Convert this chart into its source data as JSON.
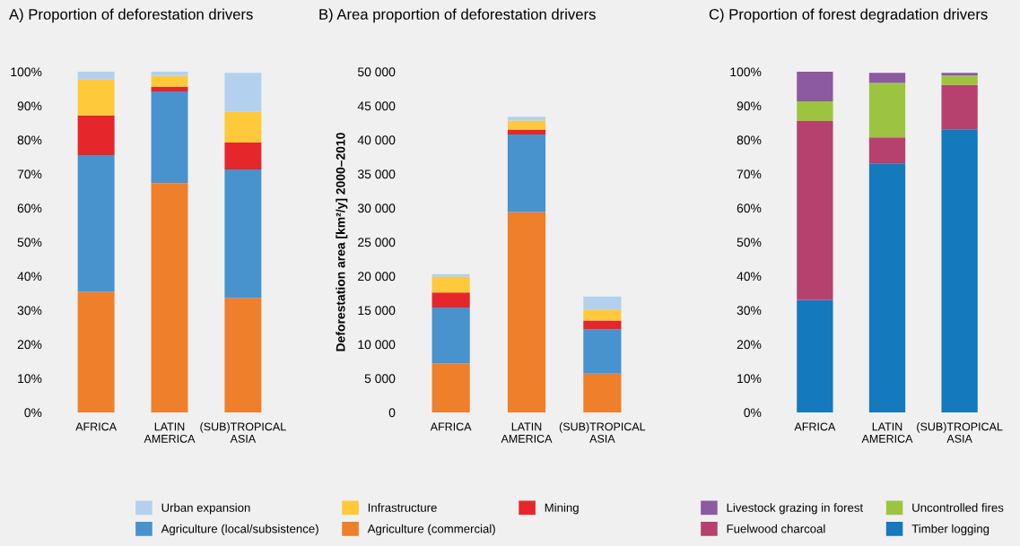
{
  "chart_data": [
    {
      "type": "bar",
      "stacked": true,
      "title": "A) Proportion of deforestation drivers",
      "categories": [
        "AFRICA",
        "LATIN\nAMERICA",
        "(SUB)TROPICAL\nASIA"
      ],
      "ylim": [
        0,
        100
      ],
      "yticks": [
        {
          "value": 0,
          "label": "0%"
        },
        {
          "value": 10,
          "label": "10%"
        },
        {
          "value": 20,
          "label": "20%"
        },
        {
          "value": 30,
          "label": "30%"
        },
        {
          "value": 40,
          "label": "40%"
        },
        {
          "value": 50,
          "label": "50%"
        },
        {
          "value": 60,
          "label": "60%"
        },
        {
          "value": 70,
          "label": "70%"
        },
        {
          "value": 80,
          "label": "80%"
        },
        {
          "value": 90,
          "label": "90%"
        },
        {
          "value": 100,
          "label": "100%"
        }
      ],
      "grid": false,
      "legend": "bottom",
      "series": [
        {
          "name": "Agriculture (commercial)",
          "color": "#ef7f2a",
          "values": [
            35.4,
            67.3,
            33.6
          ]
        },
        {
          "name": "Agriculture (local/subsistence)",
          "color": "#4892ce",
          "values": [
            40.1,
            26.9,
            37.7
          ]
        },
        {
          "name": "Mining",
          "color": "#e5262b",
          "values": [
            11.6,
            1.3,
            7.9
          ]
        },
        {
          "name": "Infrastructure",
          "color": "#fec93a",
          "values": [
            10.6,
            3.3,
            9.0
          ]
        },
        {
          "name": "Urban expansion",
          "color": "#b3d1ee",
          "values": [
            2.3,
            1.2,
            11.5
          ]
        }
      ]
    },
    {
      "type": "bar",
      "stacked": true,
      "title": "B) Area proportion of deforestation drivers",
      "ylabel": "Deforestation area [km²/y] 2000–2010",
      "categories": [
        "AFRICA",
        "LATIN\nAMERICA",
        "(SUB)TROPICAL\nASIA"
      ],
      "ylim": [
        0,
        50000
      ],
      "yticks": [
        {
          "value": 0,
          "label": "0"
        },
        {
          "value": 5000,
          "label": "5 000"
        },
        {
          "value": 10000,
          "label": "10 000"
        },
        {
          "value": 15000,
          "label": "15 000"
        },
        {
          "value": 20000,
          "label": "20 000"
        },
        {
          "value": 25000,
          "label": "25 000"
        },
        {
          "value": 30000,
          "label": "30 000"
        },
        {
          "value": 35000,
          "label": "35 000"
        },
        {
          "value": 40000,
          "label": "40 000"
        },
        {
          "value": 45000,
          "label": "45 000"
        },
        {
          "value": 50000,
          "label": "50 000"
        }
      ],
      "grid": false,
      "series": [
        {
          "color": "#ef7f2a",
          "values": [
            7200,
            29400,
            5700
          ]
        },
        {
          "color": "#4892ce",
          "values": [
            8200,
            11400,
            6500
          ]
        },
        {
          "color": "#e5262b",
          "values": [
            2200,
            700,
            1300
          ]
        },
        {
          "color": "#fec93a",
          "values": [
            2300,
            1300,
            1600
          ]
        },
        {
          "color": "#b3d1ee",
          "values": [
            400,
            600,
            1900
          ]
        }
      ]
    },
    {
      "type": "bar",
      "stacked": true,
      "title": "C) Proportion of forest degradation drivers",
      "categories": [
        "AFRICA",
        "LATIN\nAMERICA",
        "(SUB)TROPICAL\nASIA"
      ],
      "ylim": [
        0,
        100
      ],
      "yticks": [
        {
          "value": 0,
          "label": "0%"
        },
        {
          "value": 10,
          "label": "10%"
        },
        {
          "value": 20,
          "label": "20%"
        },
        {
          "value": 30,
          "label": "30%"
        },
        {
          "value": 40,
          "label": "40%"
        },
        {
          "value": 50,
          "label": "50%"
        },
        {
          "value": 60,
          "label": "60%"
        },
        {
          "value": 70,
          "label": "70%"
        },
        {
          "value": 80,
          "label": "80%"
        },
        {
          "value": 90,
          "label": "90%"
        },
        {
          "value": 100,
          "label": "100%"
        }
      ],
      "grid": false,
      "legend": "bottom",
      "series": [
        {
          "name": "Timber logging",
          "color": "#1479bd",
          "values": [
            33.0,
            73.1,
            83.1
          ]
        },
        {
          "name": "Fuelwood charcoal",
          "color": "#b6416e",
          "values": [
            52.5,
            7.6,
            13.0
          ]
        },
        {
          "name": "Uncontrolled fires",
          "color": "#9dc440",
          "values": [
            5.8,
            16.0,
            2.8
          ]
        },
        {
          "name": "Livestock grazing in forest",
          "color": "#8c5aa0",
          "values": [
            8.7,
            3.0,
            0.8
          ]
        }
      ]
    }
  ]
}
